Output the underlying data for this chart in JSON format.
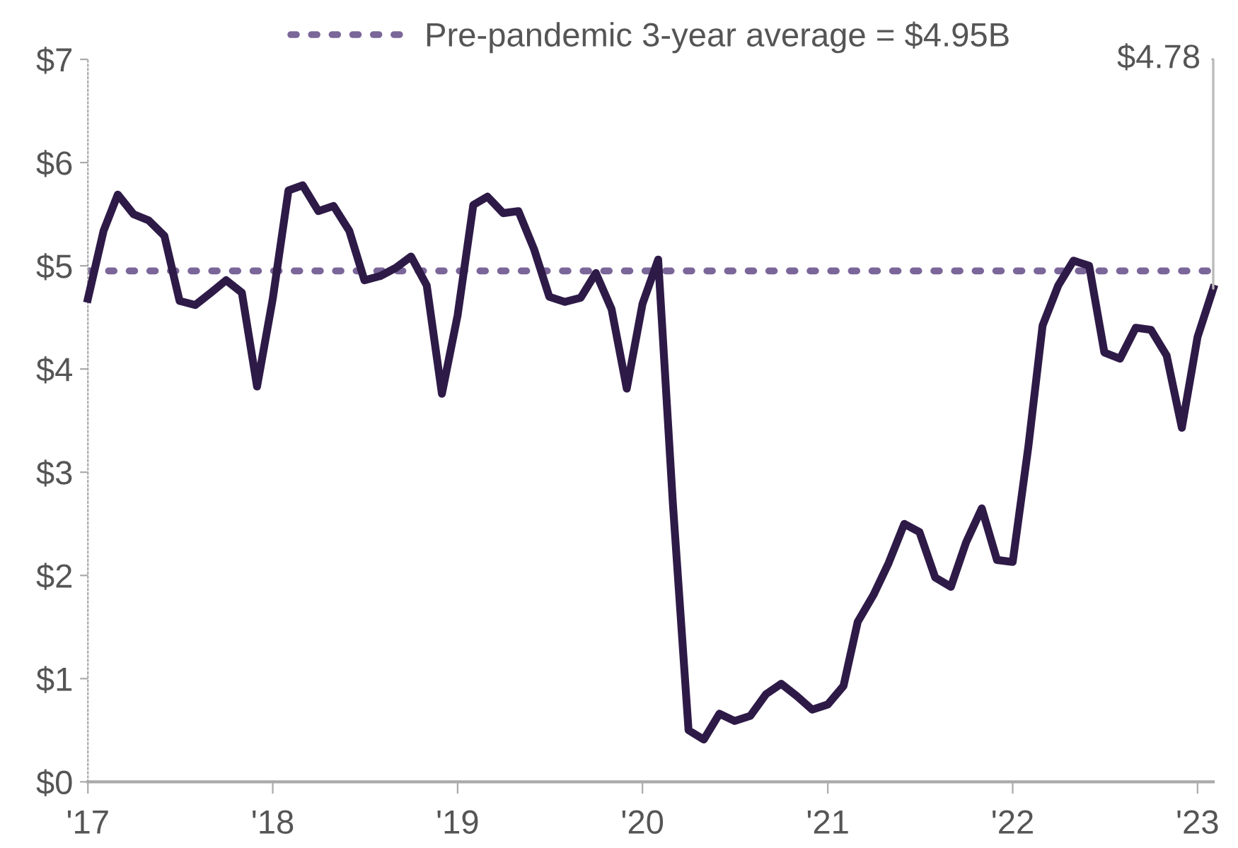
{
  "chart_data": {
    "type": "line",
    "x": [
      "2017-01",
      "2017-02",
      "2017-03",
      "2017-04",
      "2017-05",
      "2017-06",
      "2017-07",
      "2017-08",
      "2017-09",
      "2017-10",
      "2017-11",
      "2017-12",
      "2018-01",
      "2018-02",
      "2018-03",
      "2018-04",
      "2018-05",
      "2018-06",
      "2018-07",
      "2018-08",
      "2018-09",
      "2018-10",
      "2018-11",
      "2018-12",
      "2019-01",
      "2019-02",
      "2019-03",
      "2019-04",
      "2019-05",
      "2019-06",
      "2019-07",
      "2019-08",
      "2019-09",
      "2019-10",
      "2019-11",
      "2019-12",
      "2020-01",
      "2020-02",
      "2020-03",
      "2020-04",
      "2020-05",
      "2020-06",
      "2020-07",
      "2020-08",
      "2020-09",
      "2020-10",
      "2020-11",
      "2020-12",
      "2021-01",
      "2021-02",
      "2021-03",
      "2021-04",
      "2021-05",
      "2021-06",
      "2021-07",
      "2021-08",
      "2021-09",
      "2021-10",
      "2021-11",
      "2021-12",
      "2022-01",
      "2022-02",
      "2022-03",
      "2022-04",
      "2022-05",
      "2022-06",
      "2022-07",
      "2022-08",
      "2022-09",
      "2022-10",
      "2022-11",
      "2022-12",
      "2023-01",
      "2023-02"
    ],
    "series": [
      {
        "color": "#2e1a47",
        "values": [
          4.68,
          5.34,
          5.69,
          5.5,
          5.44,
          5.29,
          4.66,
          4.62,
          4.74,
          4.86,
          4.74,
          3.83,
          4.68,
          5.73,
          5.78,
          5.53,
          5.58,
          5.34,
          4.86,
          4.9,
          4.98,
          5.09,
          4.81,
          3.76,
          4.52,
          5.59,
          5.67,
          5.51,
          5.53,
          5.16,
          4.7,
          4.65,
          4.69,
          4.93,
          4.58,
          3.81,
          4.63,
          5.06,
          2.7,
          0.5,
          0.41,
          0.66,
          0.59,
          0.64,
          0.85,
          0.95,
          0.83,
          0.7,
          0.75,
          0.93,
          1.55,
          1.81,
          2.12,
          2.5,
          2.42,
          1.98,
          1.89,
          2.32,
          2.65,
          2.15,
          2.13,
          3.25,
          4.42,
          4.81,
          5.05,
          5.0,
          4.16,
          4.1,
          4.4,
          4.38,
          4.13,
          3.43,
          4.31,
          4.78
        ]
      }
    ],
    "xlim": [
      "2017-01",
      "2023-02"
    ],
    "xticks": [
      {
        "value": "2017",
        "label": "'17"
      },
      {
        "value": "2018",
        "label": "'18"
      },
      {
        "value": "2019",
        "label": "'19"
      },
      {
        "value": "2020",
        "label": "'20"
      },
      {
        "value": "2021",
        "label": "'21"
      },
      {
        "value": "2022",
        "label": "'22"
      },
      {
        "value": "2023",
        "label": "'23"
      }
    ],
    "ylim": [
      0,
      7
    ],
    "yticks": [
      {
        "value": 0,
        "label": "$0"
      },
      {
        "value": 1,
        "label": "$1"
      },
      {
        "value": 2,
        "label": "$2"
      },
      {
        "value": 3,
        "label": "$3"
      },
      {
        "value": 4,
        "label": "$4"
      },
      {
        "value": 5,
        "label": "$5"
      },
      {
        "value": 6,
        "label": "$6"
      },
      {
        "value": 7,
        "label": "$7"
      }
    ],
    "ref_lines": [
      {
        "axis": "y",
        "value": 4.95,
        "label": "Pre-pandemic 3-year average = $4.95B",
        "color": "#7b6699",
        "line_style": "dotted"
      }
    ],
    "annotations": [
      {
        "text": "$4.78",
        "x": "2023-02",
        "y": 4.78
      }
    ],
    "grid": false,
    "legend": "top",
    "line_style": "solid",
    "marker": "none"
  }
}
